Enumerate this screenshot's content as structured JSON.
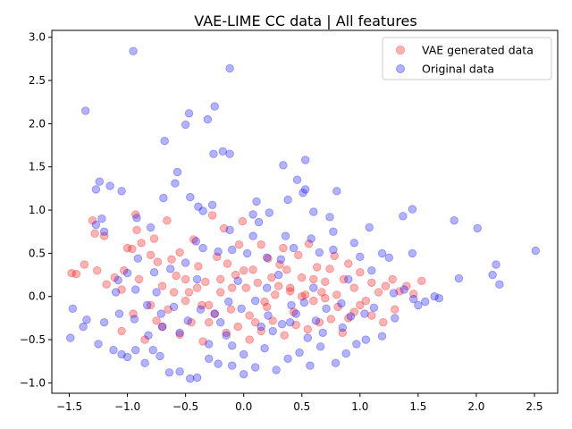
{
  "chart_data": {
    "type": "scatter",
    "title": "VAE-LIME CC data | All features",
    "xlabel": "",
    "ylabel": "",
    "xlim": [
      -1.65,
      2.7
    ],
    "ylim": [
      -1.12,
      3.08
    ],
    "xticks": [
      -1.5,
      -1.0,
      -0.5,
      0.0,
      0.5,
      1.0,
      1.5,
      2.0,
      2.5
    ],
    "xtick_labels": [
      "−1.5",
      "−1.0",
      "−0.5",
      "0.0",
      "0.5",
      "1.0",
      "1.5",
      "2.0",
      "2.5"
    ],
    "yticks": [
      -1.0,
      -0.5,
      0.0,
      0.5,
      1.0,
      1.5,
      2.0,
      2.5,
      3.0
    ],
    "ytick_labels": [
      "−1.0",
      "−0.5",
      "0.0",
      "0.5",
      "1.0",
      "1.5",
      "2.0",
      "2.5",
      "3.0"
    ],
    "grid": false,
    "legend_position": "upper right",
    "series": [
      {
        "name": "VAE generated data",
        "color": "#ff0000",
        "alpha": 0.3,
        "points": [
          [
            -1.48,
            0.27
          ],
          [
            -1.44,
            0.26
          ],
          [
            -1.37,
            0.37
          ],
          [
            -1.3,
            0.88
          ],
          [
            -1.28,
            0.73
          ],
          [
            -1.26,
            0.3
          ],
          [
            -1.2,
            0.7
          ],
          [
            -1.18,
            0.14
          ],
          [
            -1.11,
            0.22
          ],
          [
            -1.05,
            0.08
          ],
          [
            -1.03,
            0.3
          ],
          [
            -1.0,
            0.56
          ],
          [
            -0.96,
            0.55
          ],
          [
            -0.93,
            0.95
          ],
          [
            -0.92,
            0.77
          ],
          [
            -0.88,
            0.62
          ],
          [
            -0.8,
            0.48
          ],
          [
            -0.77,
            0.67
          ],
          [
            -0.74,
            0.4
          ],
          [
            -0.7,
            0.12
          ],
          [
            -0.66,
            0.88
          ],
          [
            -0.62,
            0.43
          ],
          [
            -0.58,
            0.24
          ],
          [
            -0.55,
            0.51
          ],
          [
            -0.5,
            0.2
          ],
          [
            -0.47,
            0.05
          ],
          [
            -0.43,
            0.66
          ],
          [
            -0.39,
            0.35
          ],
          [
            -0.36,
            -0.1
          ],
          [
            -0.33,
            0.17
          ],
          [
            -0.3,
            -0.3
          ],
          [
            -0.27,
            0.94
          ],
          [
            -0.23,
            0.46
          ],
          [
            -0.2,
            0.05
          ],
          [
            -0.17,
            0.79
          ],
          [
            -0.14,
            0.38
          ],
          [
            -0.11,
            -0.15
          ],
          [
            -0.07,
            0.25
          ],
          [
            -0.04,
            0.6
          ],
          [
            -0.01,
            0.87
          ],
          [
            0.02,
            0.1
          ],
          [
            0.05,
            -0.22
          ],
          [
            0.08,
            0.31
          ],
          [
            0.12,
            0.16
          ],
          [
            0.15,
            0.6
          ],
          [
            0.18,
            -0.06
          ],
          [
            0.21,
            0.44
          ],
          [
            0.24,
            0.22
          ],
          [
            0.27,
            0.02
          ],
          [
            0.31,
            0.37
          ],
          [
            0.34,
            0.56
          ],
          [
            0.37,
            0.31
          ],
          [
            0.4,
            0.1
          ],
          [
            0.43,
            -0.18
          ],
          [
            0.47,
            0.48
          ],
          [
            0.5,
            0.22
          ],
          [
            0.53,
            0.02
          ],
          [
            0.56,
            0.61
          ],
          [
            0.6,
            0.2
          ],
          [
            0.63,
            0.34
          ],
          [
            0.67,
            0.05
          ],
          [
            0.7,
            0.17
          ],
          [
            0.74,
            0.32
          ],
          [
            0.78,
            0.47
          ],
          [
            0.81,
            -0.12
          ],
          [
            0.86,
            0.2
          ],
          [
            0.9,
            0.38
          ],
          [
            0.95,
            0.1
          ],
          [
            1.0,
            0.28
          ],
          [
            1.05,
            -0.05
          ],
          [
            1.1,
            0.16
          ],
          [
            1.16,
            0.05
          ],
          [
            1.22,
            0.12
          ],
          [
            1.28,
            0.2
          ],
          [
            1.34,
            0.06
          ],
          [
            1.4,
            0.12
          ],
          [
            1.46,
            0.03
          ],
          [
            1.53,
            0.18
          ],
          [
            -1.05,
            -0.4
          ],
          [
            -0.95,
            -0.2
          ],
          [
            -0.85,
            -0.5
          ],
          [
            -0.75,
            -0.28
          ],
          [
            -0.65,
            -0.15
          ],
          [
            -0.55,
            -0.44
          ],
          [
            -0.45,
            -0.3
          ],
          [
            -0.35,
            -0.52
          ],
          [
            -0.25,
            -0.2
          ],
          [
            -0.15,
            -0.42
          ],
          [
            -0.05,
            -0.35
          ],
          [
            0.05,
            -0.5
          ],
          [
            0.15,
            -0.4
          ],
          [
            0.25,
            -0.28
          ],
          [
            0.35,
            -0.45
          ],
          [
            0.45,
            -0.33
          ],
          [
            0.55,
            -0.38
          ],
          [
            0.65,
            -0.3
          ],
          [
            0.75,
            -0.26
          ],
          [
            0.85,
            -0.42
          ],
          [
            0.95,
            -0.18
          ],
          [
            1.1,
            -0.22
          ],
          [
            1.2,
            -0.3
          ],
          [
            1.3,
            -0.15
          ],
          [
            -0.6,
            0.05
          ],
          [
            -0.4,
            0.1
          ],
          [
            -0.2,
            0.2
          ],
          [
            0.0,
            0.3
          ],
          [
            0.2,
            -0.12
          ],
          [
            0.4,
            0.06
          ],
          [
            0.6,
            -0.05
          ],
          [
            0.8,
            0.02
          ],
          [
            -0.8,
            -0.1
          ],
          [
            -0.5,
            -0.05
          ],
          [
            -0.1,
            0.1
          ],
          [
            0.3,
            0.12
          ],
          [
            0.7,
            -0.02
          ],
          [
            1.0,
            -0.1
          ],
          [
            -0.9,
            0.2
          ],
          [
            -0.7,
            -0.35
          ],
          [
            -0.3,
            -0.1
          ],
          [
            0.1,
            -0.3
          ],
          [
            0.5,
            0.0
          ],
          [
            0.9,
            -0.25
          ]
        ]
      },
      {
        "name": "Original data",
        "color": "#0000ff",
        "alpha": 0.3,
        "points": [
          [
            -0.95,
            2.84
          ],
          [
            -0.12,
            2.64
          ],
          [
            -1.36,
            2.15
          ],
          [
            -0.47,
            2.12
          ],
          [
            -0.25,
            2.2
          ],
          [
            -0.31,
            2.05
          ],
          [
            -0.5,
            1.99
          ],
          [
            -0.68,
            1.8
          ],
          [
            -0.12,
            1.65
          ],
          [
            -0.26,
            1.65
          ],
          [
            -0.18,
            1.68
          ],
          [
            0.53,
            1.58
          ],
          [
            0.34,
            1.52
          ],
          [
            -0.57,
            1.44
          ],
          [
            0.46,
            1.35
          ],
          [
            -1.24,
            1.33
          ],
          [
            -1.27,
            1.24
          ],
          [
            -0.69,
            1.14
          ],
          [
            0.53,
            1.24
          ],
          [
            -0.59,
            1.31
          ],
          [
            -0.46,
            1.15
          ],
          [
            0.51,
            1.2
          ],
          [
            0.11,
            1.1
          ],
          [
            0.8,
            1.22
          ],
          [
            0.38,
            1.12
          ],
          [
            0.22,
            0.97
          ],
          [
            -1.05,
            1.22
          ],
          [
            -1.22,
            0.9
          ],
          [
            -1.27,
            0.83
          ],
          [
            -1.2,
            0.75
          ],
          [
            -1.15,
            1.28
          ],
          [
            -0.39,
            1.04
          ],
          [
            -0.35,
            0.99
          ],
          [
            -0.27,
            1.06
          ],
          [
            0.08,
            0.95
          ],
          [
            0.6,
            0.98
          ],
          [
            0.74,
            0.92
          ],
          [
            1.37,
            0.93
          ],
          [
            1.45,
            1.01
          ],
          [
            1.81,
            0.88
          ],
          [
            2.01,
            0.79
          ],
          [
            1.08,
            0.8
          ],
          [
            0.77,
            0.75
          ],
          [
            0.58,
            0.67
          ],
          [
            -0.12,
            0.77
          ],
          [
            0.13,
            0.86
          ],
          [
            -0.41,
            0.64
          ],
          [
            -0.92,
            0.91
          ],
          [
            -0.8,
            0.8
          ],
          [
            0.36,
            0.7
          ],
          [
            0.08,
            0.7
          ],
          [
            0.95,
            0.62
          ],
          [
            1.19,
            0.5
          ],
          [
            1.45,
            0.5
          ],
          [
            2.51,
            0.53
          ],
          [
            2.17,
            0.37
          ],
          [
            1.85,
            0.21
          ],
          [
            2.14,
            0.25
          ],
          [
            2.2,
            0.14
          ],
          [
            1.25,
            0.45
          ],
          [
            1.0,
            0.46
          ],
          [
            0.77,
            0.54
          ],
          [
            0.65,
            0.51
          ],
          [
            0.43,
            0.56
          ],
          [
            0.32,
            0.43
          ],
          [
            0.2,
            0.45
          ],
          [
            0.03,
            0.5
          ],
          [
            -0.1,
            0.54
          ],
          [
            -0.22,
            0.52
          ],
          [
            -0.35,
            0.56
          ],
          [
            -0.5,
            0.39
          ],
          [
            -0.63,
            0.32
          ],
          [
            -0.77,
            0.28
          ],
          [
            -1.0,
            0.27
          ],
          [
            -1.08,
            0.19
          ],
          [
            -0.91,
            0.44
          ],
          [
            -0.93,
            0.08
          ],
          [
            1.38,
            0.08
          ],
          [
            1.64,
            0.0
          ],
          [
            1.68,
            -0.02
          ],
          [
            1.56,
            -0.06
          ],
          [
            1.46,
            -0.03
          ],
          [
            1.29,
            0.04
          ],
          [
            1.12,
            -0.13
          ],
          [
            1.04,
            -0.2
          ],
          [
            0.92,
            -0.23
          ],
          [
            0.84,
            -0.08
          ],
          [
            0.71,
            -0.14
          ],
          [
            0.62,
            -0.28
          ],
          [
            0.52,
            -0.07
          ],
          [
            0.41,
            -0.1
          ],
          [
            0.33,
            -0.32
          ],
          [
            0.21,
            -0.22
          ],
          [
            0.1,
            -0.05
          ],
          [
            -0.02,
            -0.14
          ],
          [
            -0.13,
            -0.06
          ],
          [
            -0.25,
            -0.2
          ],
          [
            -0.37,
            -0.15
          ],
          [
            -0.48,
            -0.28
          ],
          [
            -0.6,
            -0.12
          ],
          [
            -0.71,
            -0.2
          ],
          [
            -0.83,
            -0.1
          ],
          [
            -0.94,
            -0.26
          ],
          [
            -1.07,
            -0.2
          ],
          [
            -1.2,
            -0.3
          ],
          [
            -1.35,
            -0.27
          ],
          [
            -1.47,
            -0.14
          ],
          [
            -1.49,
            -0.48
          ],
          [
            -1.38,
            -0.35
          ],
          [
            -1.25,
            -0.55
          ],
          [
            -1.12,
            -0.62
          ],
          [
            -1.05,
            -0.67
          ],
          [
            -1.0,
            -0.7
          ],
          [
            -0.93,
            -0.62
          ],
          [
            -0.85,
            -0.77
          ],
          [
            -0.78,
            -0.62
          ],
          [
            -0.72,
            -0.69
          ],
          [
            -0.64,
            -0.88
          ],
          [
            -0.55,
            -0.87
          ],
          [
            -0.46,
            -0.95
          ],
          [
            -0.4,
            -0.94
          ],
          [
            -0.3,
            -0.72
          ],
          [
            -0.22,
            -0.78
          ],
          [
            -0.1,
            -0.57
          ],
          [
            0.0,
            -0.67
          ],
          [
            0.1,
            -0.82
          ],
          [
            0.18,
            -0.6
          ],
          [
            0.28,
            -0.85
          ],
          [
            0.38,
            -0.72
          ],
          [
            0.48,
            -0.65
          ],
          [
            0.57,
            -0.8
          ],
          [
            0.66,
            -0.58
          ],
          [
            0.79,
            -0.77
          ],
          [
            0.88,
            -0.66
          ],
          [
            0.97,
            -0.55
          ],
          [
            1.05,
            -0.5
          ],
          [
            1.19,
            -0.46
          ],
          [
            -0.15,
            -0.45
          ],
          [
            0.25,
            -0.4
          ],
          [
            -0.55,
            -0.42
          ],
          [
            0.55,
            -0.48
          ],
          [
            -0.82,
            -0.45
          ],
          [
            0.85,
            -0.36
          ],
          [
            -0.3,
            -0.55
          ],
          [
            0.15,
            -0.35
          ],
          [
            -0.7,
            -0.35
          ],
          [
            0.68,
            -0.42
          ],
          [
            1.3,
            -0.25
          ],
          [
            1.5,
            -0.1
          ],
          [
            -0.05,
            0.18
          ],
          [
            0.3,
            0.25
          ],
          [
            -0.4,
            0.2
          ],
          [
            0.6,
            0.1
          ],
          [
            -0.75,
            0.05
          ],
          [
            1.1,
            0.3
          ],
          [
            0.9,
            0.2
          ],
          [
            -0.2,
            -0.3
          ],
          [
            0.45,
            -0.2
          ],
          [
            -1.1,
            0.05
          ],
          [
            0.0,
            -0.9
          ],
          [
            -0.1,
            -0.8
          ],
          [
            0.4,
            -0.3
          ],
          [
            0.2,
            0.1
          ]
        ]
      }
    ]
  }
}
